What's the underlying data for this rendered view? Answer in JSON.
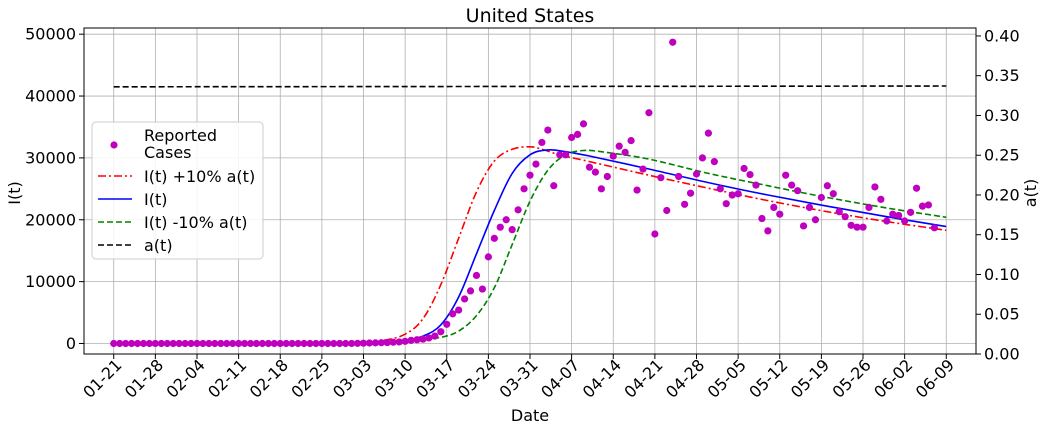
{
  "chart_data": {
    "type": "line",
    "title": "United States",
    "xlabel": "Date",
    "ylabel": "I(t)",
    "y2label": "a(t)",
    "ylim": [
      -1700,
      51000
    ],
    "y2lim": [
      0,
      0.41
    ],
    "yticks": [
      0,
      10000,
      20000,
      30000,
      40000,
      50000
    ],
    "y2ticks": [
      "0.00",
      "0.05",
      "0.10",
      "0.15",
      "0.20",
      "0.25",
      "0.30",
      "0.35",
      "0.40"
    ],
    "xticks": [
      "01-21",
      "01-28",
      "02-04",
      "02-11",
      "02-18",
      "02-25",
      "03-03",
      "03-10",
      "03-17",
      "03-24",
      "03-31",
      "04-07",
      "04-14",
      "04-21",
      "04-28",
      "05-05",
      "05-12",
      "05-19",
      "05-26",
      "06-02",
      "06-09"
    ],
    "x_start": "01-21",
    "x_end": "06-09",
    "grid": true,
    "legend_position": "center-left",
    "series": [
      {
        "name": "Reported Cases",
        "kind": "scatter",
        "color": "#bf00bf",
        "values": [
          0,
          0,
          0,
          0,
          0,
          0,
          0,
          0,
          0,
          0,
          0,
          0,
          0,
          0,
          0,
          0,
          0,
          0,
          0,
          0,
          0,
          0,
          0,
          0,
          0,
          0,
          0,
          0,
          0,
          0,
          0,
          0,
          0,
          0,
          0,
          0,
          0,
          0,
          0,
          0,
          10,
          20,
          50,
          80,
          100,
          130,
          150,
          200,
          250,
          350,
          500,
          600,
          700,
          900,
          1200,
          1900,
          3100,
          4800,
          5400,
          7200,
          8500,
          11000,
          8800,
          14000,
          17000,
          18800,
          20000,
          18400,
          21600,
          25000,
          27200,
          29000,
          32500,
          34500,
          25500,
          30500,
          30500,
          33300,
          33800,
          35500,
          28500,
          27700,
          25000,
          27000,
          30300,
          31900,
          30900,
          32800,
          24800,
          28200,
          37300,
          17700,
          26800,
          21500,
          48700,
          27000,
          22500,
          24300,
          27400,
          30000,
          34000,
          29400,
          25000,
          22600,
          24000,
          24200,
          28300,
          27300,
          25600,
          20200,
          18200,
          22000,
          20900,
          27200,
          25600,
          24700,
          19000,
          22000,
          20000,
          23600,
          25500,
          24200,
          21300,
          20500,
          19100,
          18800,
          18800,
          22000,
          25300,
          23300,
          19800,
          20900,
          20700,
          19800,
          21200,
          25100,
          22200,
          22400,
          18700
        ]
      },
      {
        "name": "I(t) +10% a(t)",
        "kind": "line",
        "color": "#ff0000",
        "style": "dashdot",
        "points": [
          [
            0,
            0
          ],
          [
            40,
            150
          ],
          [
            45,
            450
          ],
          [
            49,
            1500
          ],
          [
            52,
            4000
          ],
          [
            55,
            9500
          ],
          [
            58,
            17000
          ],
          [
            61,
            24500
          ],
          [
            64,
            29500
          ],
          [
            67,
            31400
          ],
          [
            70,
            31800
          ],
          [
            72,
            31400
          ],
          [
            75,
            30500
          ],
          [
            80,
            29400
          ],
          [
            90,
            27200
          ],
          [
            100,
            25100
          ],
          [
            110,
            23100
          ],
          [
            120,
            21300
          ],
          [
            130,
            19700
          ],
          [
            140,
            18300
          ]
        ]
      },
      {
        "name": "I(t)",
        "kind": "line",
        "color": "#0000ff",
        "style": "solid",
        "points": [
          [
            0,
            0
          ],
          [
            40,
            100
          ],
          [
            45,
            250
          ],
          [
            49,
            500
          ],
          [
            52,
            1200
          ],
          [
            55,
            3000
          ],
          [
            58,
            7500
          ],
          [
            61,
            14500
          ],
          [
            64,
            21500
          ],
          [
            67,
            27500
          ],
          [
            70,
            30500
          ],
          [
            73,
            31300
          ],
          [
            76,
            31000
          ],
          [
            80,
            30300
          ],
          [
            90,
            28200
          ],
          [
            100,
            26000
          ],
          [
            110,
            24000
          ],
          [
            120,
            22200
          ],
          [
            130,
            20500
          ],
          [
            140,
            18900
          ]
        ]
      },
      {
        "name": "I(t) -10% a(t)",
        "kind": "line",
        "color": "#008000",
        "style": "dashed",
        "points": [
          [
            0,
            0
          ],
          [
            45,
            150
          ],
          [
            50,
            400
          ],
          [
            55,
            1000
          ],
          [
            58,
            2000
          ],
          [
            61,
            4500
          ],
          [
            64,
            9000
          ],
          [
            67,
            16000
          ],
          [
            70,
            23000
          ],
          [
            73,
            28000
          ],
          [
            76,
            30500
          ],
          [
            79,
            31200
          ],
          [
            82,
            31000
          ],
          [
            90,
            29800
          ],
          [
            100,
            27500
          ],
          [
            110,
            25500
          ],
          [
            120,
            23600
          ],
          [
            130,
            21900
          ],
          [
            140,
            20400
          ]
        ]
      },
      {
        "name": "a(t)",
        "kind": "line",
        "axis": "right",
        "color": "#000000",
        "style": "dashed",
        "points": [
          [
            0,
            0.336
          ],
          [
            140,
            0.337
          ]
        ]
      }
    ]
  }
}
